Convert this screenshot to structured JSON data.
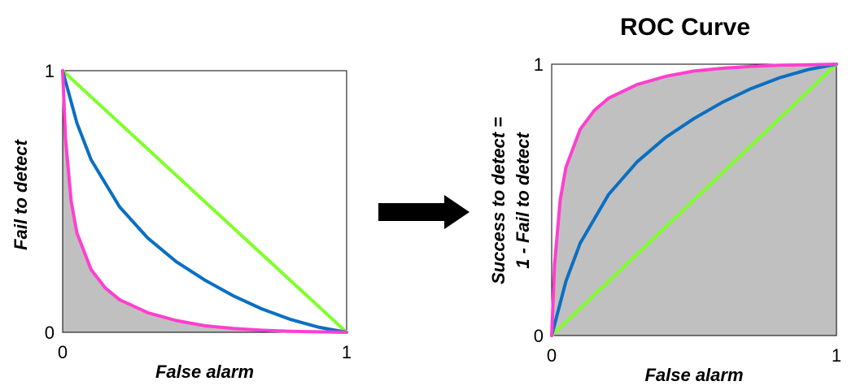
{
  "chart_data": [
    {
      "type": "line",
      "title": "",
      "xlabel": "False alarm",
      "ylabel": "Fail to detect",
      "xlim": [
        0,
        1
      ],
      "ylim": [
        0,
        1
      ],
      "x_ticks": [
        "0",
        "1"
      ],
      "y_ticks": [
        "0",
        "1"
      ],
      "grid": false,
      "shaded_area": "below lowest curve",
      "series": [
        {
          "color": "#7fff2a",
          "x": [
            0,
            0.25,
            0.5,
            0.75,
            1
          ],
          "y": [
            1,
            0.75,
            0.5,
            0.25,
            0
          ]
        },
        {
          "color": "#0a6fc2",
          "x": [
            0,
            0.05,
            0.1,
            0.2,
            0.3,
            0.4,
            0.5,
            0.6,
            0.7,
            0.8,
            0.9,
            1
          ],
          "y": [
            1,
            0.8,
            0.66,
            0.48,
            0.36,
            0.27,
            0.2,
            0.14,
            0.09,
            0.05,
            0.02,
            0
          ]
        },
        {
          "color": "#ff3fd0",
          "x": [
            0,
            0.01,
            0.03,
            0.05,
            0.1,
            0.15,
            0.2,
            0.3,
            0.4,
            0.5,
            0.6,
            0.7,
            0.8,
            0.9,
            1
          ],
          "y": [
            1,
            0.74,
            0.5,
            0.38,
            0.24,
            0.17,
            0.125,
            0.075,
            0.045,
            0.025,
            0.015,
            0.008,
            0.004,
            0.002,
            0
          ]
        }
      ]
    },
    {
      "type": "line",
      "title": "ROC Curve",
      "xlabel": "False alarm",
      "ylabel_lines": [
        "Success to detect =",
        "1 - Fail to detect"
      ],
      "xlim": [
        0,
        1
      ],
      "ylim": [
        0,
        1
      ],
      "x_ticks": [
        "0",
        "1"
      ],
      "y_ticks": [
        "0",
        "1"
      ],
      "grid": false,
      "shaded_area": "below highest curve",
      "series": [
        {
          "color": "#7fff2a",
          "x": [
            0,
            0.25,
            0.5,
            0.75,
            1
          ],
          "y": [
            0,
            0.25,
            0.5,
            0.75,
            1
          ]
        },
        {
          "color": "#0a6fc2",
          "x": [
            0,
            0.05,
            0.1,
            0.2,
            0.3,
            0.4,
            0.5,
            0.6,
            0.7,
            0.8,
            0.9,
            1
          ],
          "y": [
            0,
            0.2,
            0.34,
            0.52,
            0.64,
            0.73,
            0.8,
            0.86,
            0.91,
            0.95,
            0.98,
            1
          ]
        },
        {
          "color": "#ff3fd0",
          "x": [
            0,
            0.01,
            0.03,
            0.05,
            0.1,
            0.15,
            0.2,
            0.3,
            0.4,
            0.5,
            0.6,
            0.7,
            0.8,
            0.9,
            1
          ],
          "y": [
            0,
            0.26,
            0.5,
            0.62,
            0.76,
            0.83,
            0.875,
            0.925,
            0.955,
            0.975,
            0.985,
            0.992,
            0.996,
            0.998,
            1
          ]
        }
      ]
    }
  ],
  "arrow": {
    "icon": "right-arrow-icon",
    "color": "#000000"
  }
}
